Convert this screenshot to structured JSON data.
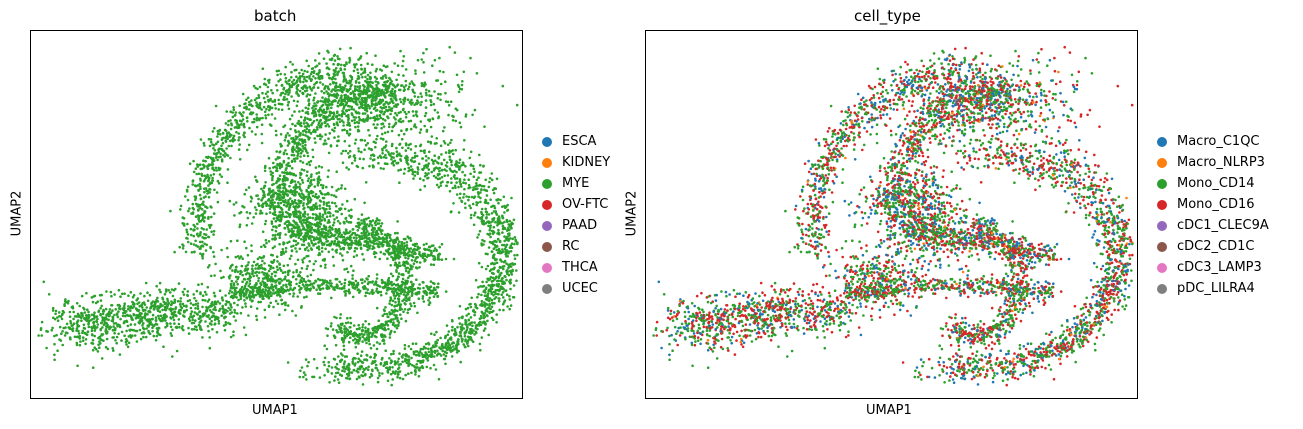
{
  "chart_data": [
    {
      "type": "scatter",
      "title": "batch",
      "xlabel": "UMAP1",
      "ylabel": "UMAP2",
      "grid": false,
      "ticks": false,
      "legend_position": "right",
      "legend": [
        {
          "label": "ESCA",
          "color": "#1f77b4"
        },
        {
          "label": "KIDNEY",
          "color": "#ff7f0e"
        },
        {
          "label": "MYE",
          "color": "#2ca02c"
        },
        {
          "label": "OV-FTC",
          "color": "#d62728"
        },
        {
          "label": "PAAD",
          "color": "#9467bd"
        },
        {
          "label": "RC",
          "color": "#8c564b"
        },
        {
          "label": "THCA",
          "color": "#e377c2"
        },
        {
          "label": "UCEC",
          "color": "#7f7f7f"
        }
      ],
      "point_color_weights": [
        0,
        0,
        1,
        0,
        0,
        0,
        0,
        0
      ]
    },
    {
      "type": "scatter",
      "title": "cell_type",
      "xlabel": "UMAP1",
      "ylabel": "UMAP2",
      "grid": false,
      "ticks": false,
      "legend_position": "right",
      "legend": [
        {
          "label": "Macro_C1QC",
          "color": "#1f77b4"
        },
        {
          "label": "Macro_NLRP3",
          "color": "#ff7f0e"
        },
        {
          "label": "Mono_CD14",
          "color": "#2ca02c"
        },
        {
          "label": "Mono_CD16",
          "color": "#d62728"
        },
        {
          "label": "cDC1_CLEC9A",
          "color": "#9467bd"
        },
        {
          "label": "cDC2_CD1C",
          "color": "#8c564b"
        },
        {
          "label": "cDC3_LAMP3",
          "color": "#e377c2"
        },
        {
          "label": "pDC_LILRA4",
          "color": "#7f7f7f"
        }
      ],
      "point_color_weights": [
        0.2,
        0.02,
        0.4,
        0.38,
        0,
        0,
        0,
        0
      ]
    }
  ]
}
